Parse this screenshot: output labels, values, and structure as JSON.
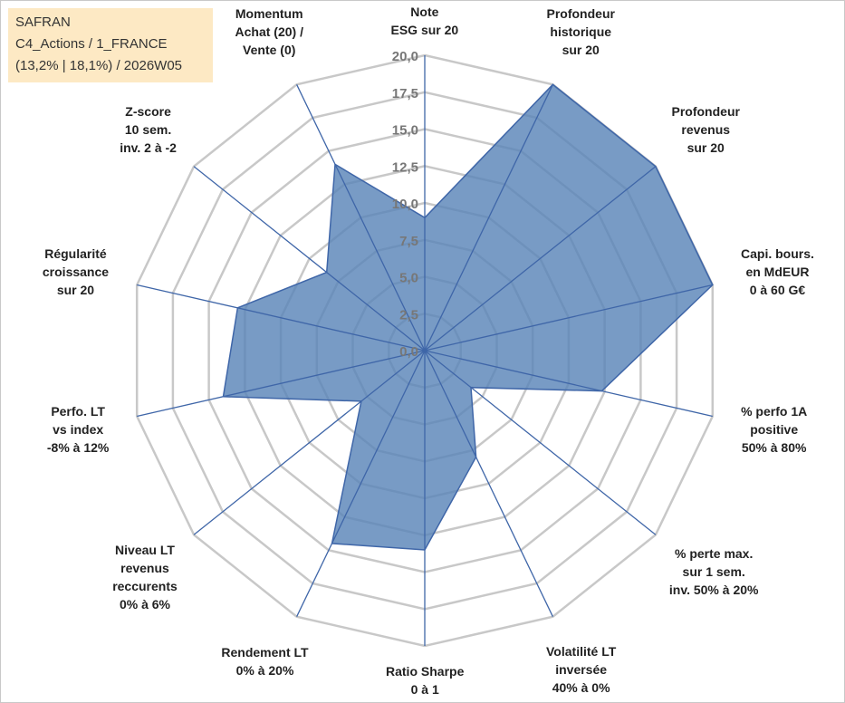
{
  "info": {
    "line1": "SAFRAN",
    "line2": "C4_Actions / 1_FRANCE",
    "line3": "(13,2% | 18,1%) / 2026W05"
  },
  "colors": {
    "fill": "#5a85b8",
    "stroke": "#3f66a8",
    "grid": "#c8c8c8",
    "spoke": "#3f66a8",
    "tick": "#777777",
    "info_bg": "#fde9c4"
  },
  "chart_data": {
    "type": "radar",
    "rmax": 20,
    "ticks": [
      "0,0",
      "2,5",
      "5,0",
      "7,5",
      "10,0",
      "12,5",
      "15,0",
      "17,5",
      "20,0"
    ],
    "categories": [
      {
        "label": [
          "Note",
          "ESG sur 20"
        ],
        "value": 9.0
      },
      {
        "label": [
          "Profondeur",
          "historique",
          "sur 20"
        ],
        "value": 20.0
      },
      {
        "label": [
          "Profondeur",
          "revenus",
          "sur 20"
        ],
        "value": 20.0
      },
      {
        "label": [
          "Capi. bours.",
          "en MdEUR",
          "0 à 60 G€"
        ],
        "value": 20.0
      },
      {
        "label": [
          "% perfo 1A",
          "positive",
          "50% à 80%"
        ],
        "value": 12.3
      },
      {
        "label": [
          "% perte max.",
          "sur 1 sem.",
          "inv. 50% à 20%"
        ],
        "value": 4.0
      },
      {
        "label": [
          "Volatilité LT",
          "inversée",
          "40% à 0%"
        ],
        "value": 8.0
      },
      {
        "label": [
          "Ratio Sharpe",
          "0 à 1"
        ],
        "value": 13.5
      },
      {
        "label": [
          "Rendement LT",
          "0% à 20%"
        ],
        "value": 14.5
      },
      {
        "label": [
          "Niveau LT",
          "revenus",
          "reccurents",
          "0% à 6%"
        ],
        "value": 5.5
      },
      {
        "label": [
          "Perfo. LT",
          "vs index",
          "-8% à 12%"
        ],
        "value": 14.0
      },
      {
        "label": [
          "Régularité",
          "croissance",
          "sur 20"
        ],
        "value": 13.0
      },
      {
        "label": [
          "Z-score",
          "10 sem.",
          "inv. 2 à -2"
        ],
        "value": 8.5
      },
      {
        "label": [
          "Momentum",
          "Achat (20) /",
          "Vente (0)"
        ],
        "value": 14.0
      }
    ]
  }
}
